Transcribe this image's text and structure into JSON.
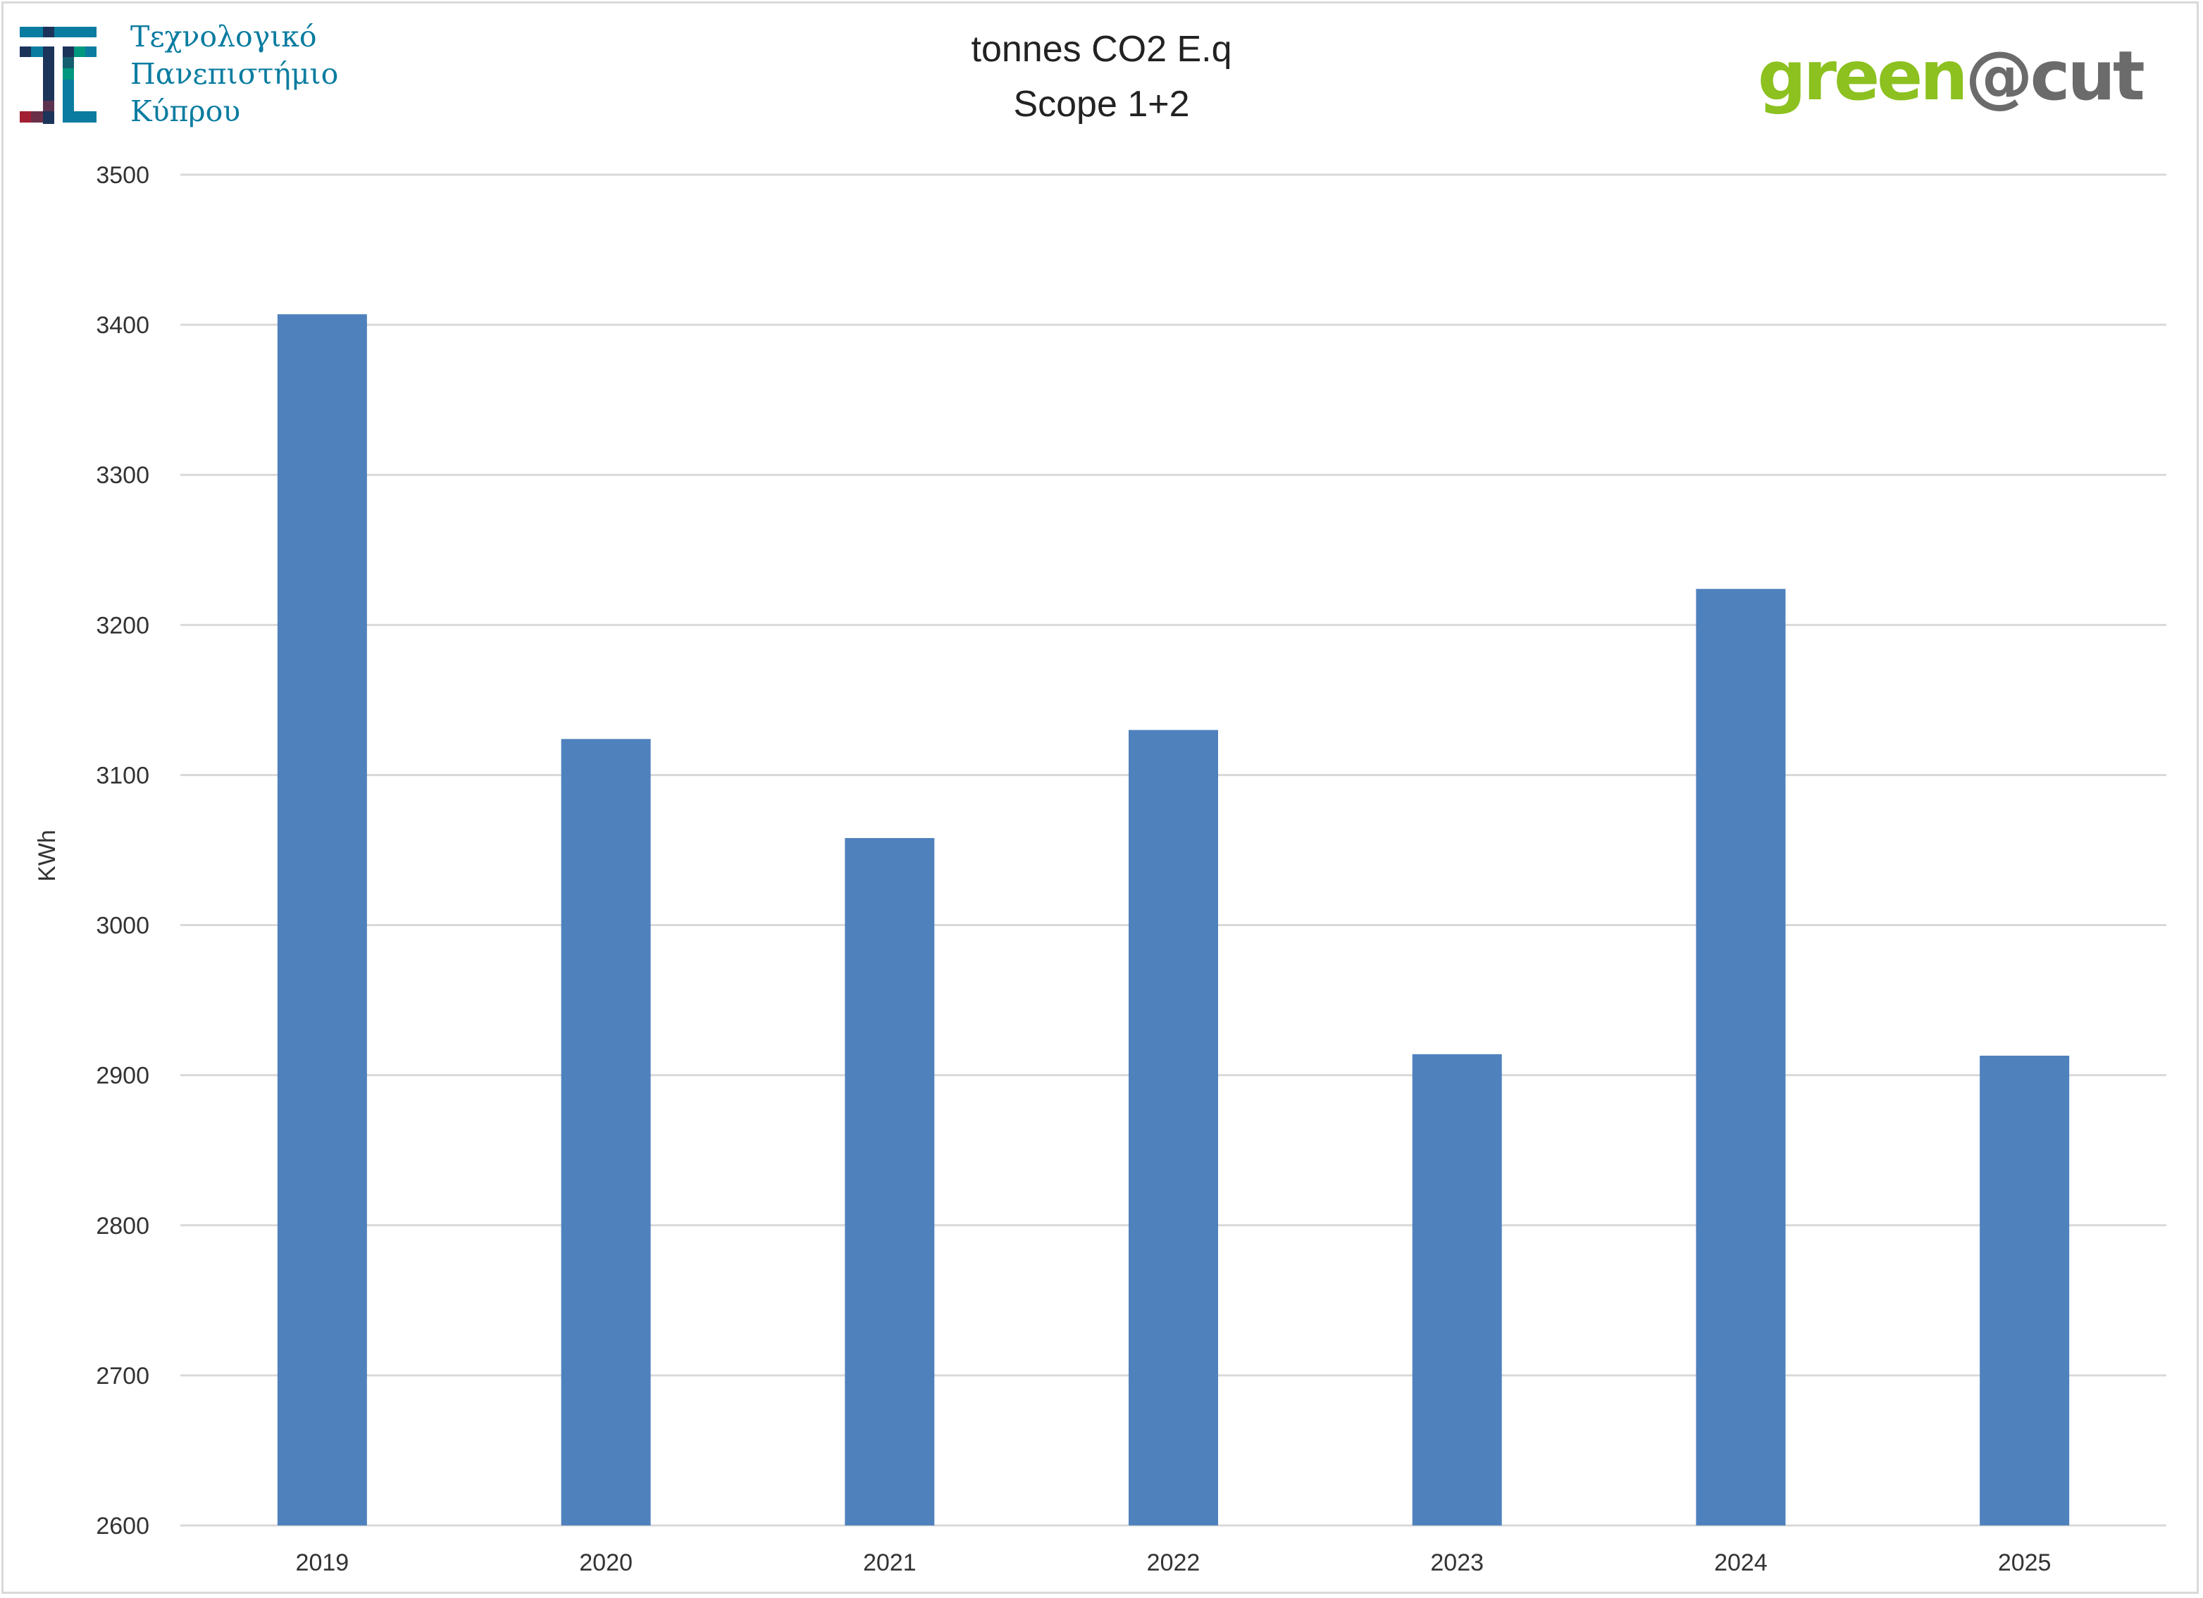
{
  "header": {
    "university_logo_text": [
      "Τεχνολογικό",
      "Πανεπιστήμιο",
      "Κύπρου"
    ],
    "green_logo": {
      "part1": "green",
      "part2": "@cut"
    }
  },
  "colors": {
    "bar": "#4f81bd",
    "grid": "#d9d9d9",
    "university": "#0a7ca0",
    "green": "#8cc11f",
    "gray": "#6b6b6b"
  },
  "chart_data": {
    "type": "bar",
    "title": "tonnes CO2 E.q",
    "subtitle": "Scope 1+2",
    "xlabel": "",
    "ylabel": "KWh",
    "categories": [
      "2019",
      "2020",
      "2021",
      "2022",
      "2023",
      "2024",
      "2025"
    ],
    "values": [
      3407,
      3124,
      3058,
      3130,
      2914,
      3224,
      2913
    ],
    "ylim": [
      2600,
      3500
    ],
    "yticks": [
      2600,
      2700,
      2800,
      2900,
      3000,
      3100,
      3200,
      3300,
      3400,
      3500
    ],
    "grid": true,
    "legend": "none"
  }
}
